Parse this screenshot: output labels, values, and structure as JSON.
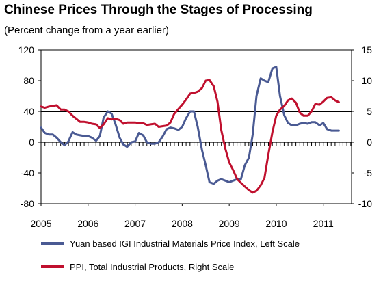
{
  "title": "Chinese Prices Through the Stages of Processing",
  "subtitle": "(Percent change from a year earlier)",
  "colors": {
    "series1": "#4a5a93",
    "series2": "#c0102e",
    "ref_line": "#000000"
  },
  "chart_data": {
    "type": "line",
    "xlim": [
      2005,
      2011.6
    ],
    "x_tick_labels": [
      "2005",
      "2006",
      "2007",
      "2008",
      "2009",
      "2010",
      "2011"
    ],
    "y_left": {
      "lim": [
        -80,
        120
      ],
      "ticks": [
        120,
        80,
        40,
        0,
        -40,
        -80
      ],
      "tick_labels": [
        "120",
        "80",
        "40",
        "0",
        "-40",
        "-80"
      ]
    },
    "y_right": {
      "lim": [
        -10,
        15
      ],
      "ticks": [
        15,
        10,
        5,
        0,
        -5,
        -10
      ],
      "tick_labels": [
        "15",
        "10",
        "5",
        "0",
        "-5",
        "-10"
      ]
    },
    "reference_line": {
      "axis": "left",
      "y": 40
    },
    "series": [
      {
        "name": "Yuan based IGI Industrial Materials Price Index, Left Scale",
        "axis": "left",
        "x": [
          2005.0,
          2005.08,
          2005.17,
          2005.25,
          2005.33,
          2005.42,
          2005.5,
          2005.58,
          2005.67,
          2005.75,
          2005.83,
          2005.92,
          2006.0,
          2006.08,
          2006.17,
          2006.25,
          2006.33,
          2006.42,
          2006.5,
          2006.58,
          2006.67,
          2006.75,
          2006.83,
          2006.92,
          2007.0,
          2007.08,
          2007.17,
          2007.25,
          2007.33,
          2007.42,
          2007.5,
          2007.58,
          2007.67,
          2007.75,
          2007.83,
          2007.92,
          2008.0,
          2008.08,
          2008.17,
          2008.25,
          2008.33,
          2008.42,
          2008.5,
          2008.58,
          2008.67,
          2008.75,
          2008.83,
          2008.92,
          2009.0,
          2009.08,
          2009.17,
          2009.25,
          2009.33,
          2009.42,
          2009.5,
          2009.58,
          2009.67,
          2009.75,
          2009.83,
          2009.92,
          2010.0,
          2010.08,
          2010.17,
          2010.25,
          2010.33,
          2010.42,
          2010.5,
          2010.58,
          2010.67,
          2010.75,
          2010.83,
          2010.92,
          2011.0,
          2011.08,
          2011.17,
          2011.25,
          2011.33
        ],
        "y": [
          19,
          12,
          10,
          10,
          6,
          0,
          -4,
          1,
          13,
          10,
          9,
          8,
          8,
          6,
          2,
          8,
          32,
          40,
          37,
          24,
          6,
          -3,
          -6,
          0,
          1,
          12,
          9,
          0,
          -2,
          -2,
          0,
          7,
          17,
          19,
          18,
          16,
          20,
          31,
          40,
          40,
          20,
          -10,
          -30,
          -52,
          -54,
          -50,
          -48,
          -50,
          -52,
          -50,
          -48,
          -48,
          -30,
          -20,
          10,
          60,
          83,
          80,
          78,
          96,
          98,
          60,
          35,
          25,
          22,
          22,
          24,
          25,
          24,
          26,
          26,
          22,
          25,
          17,
          15,
          15,
          15
        ]
      },
      {
        "name": "PPI, Total Industrial Products, Right Scale",
        "axis": "right",
        "x": [
          2005.0,
          2005.08,
          2005.17,
          2005.25,
          2005.33,
          2005.42,
          2005.5,
          2005.58,
          2005.67,
          2005.75,
          2005.83,
          2005.92,
          2006.0,
          2006.08,
          2006.17,
          2006.25,
          2006.33,
          2006.42,
          2006.5,
          2006.58,
          2006.67,
          2006.75,
          2006.83,
          2006.92,
          2007.0,
          2007.08,
          2007.17,
          2007.25,
          2007.33,
          2007.42,
          2007.5,
          2007.58,
          2007.67,
          2007.75,
          2007.83,
          2007.92,
          2008.0,
          2008.08,
          2008.17,
          2008.25,
          2008.33,
          2008.42,
          2008.5,
          2008.58,
          2008.67,
          2008.75,
          2008.83,
          2008.92,
          2009.0,
          2009.08,
          2009.17,
          2009.25,
          2009.33,
          2009.42,
          2009.5,
          2009.58,
          2009.67,
          2009.75,
          2009.83,
          2009.92,
          2010.0,
          2010.08,
          2010.17,
          2010.25,
          2010.33,
          2010.42,
          2010.5,
          2010.58,
          2010.67,
          2010.75,
          2010.83,
          2010.92,
          2011.0,
          2011.08,
          2011.17,
          2011.25,
          2011.33
        ],
        "y": [
          5.8,
          5.6,
          5.8,
          5.9,
          6.0,
          5.3,
          5.3,
          5.0,
          4.3,
          3.8,
          3.3,
          3.3,
          3.2,
          3.0,
          2.9,
          2.3,
          2.9,
          3.9,
          3.7,
          3.8,
          3.6,
          3.0,
          3.2,
          3.2,
          3.2,
          3.1,
          3.1,
          2.8,
          2.9,
          3.0,
          2.5,
          2.6,
          2.7,
          3.2,
          4.6,
          5.4,
          6.1,
          6.9,
          7.9,
          8.0,
          8.2,
          8.8,
          10.0,
          10.1,
          9.1,
          6.6,
          2.0,
          -1.1,
          -3.3,
          -4.5,
          -6.0,
          -6.6,
          -7.2,
          -7.8,
          -8.2,
          -7.9,
          -7.0,
          -5.8,
          -2.1,
          1.7,
          4.3,
          5.3,
          5.9,
          6.8,
          7.1,
          6.4,
          4.8,
          4.3,
          4.3,
          5.0,
          6.2,
          6.1,
          6.6,
          7.2,
          7.3,
          6.8,
          6.5
        ]
      }
    ]
  }
}
